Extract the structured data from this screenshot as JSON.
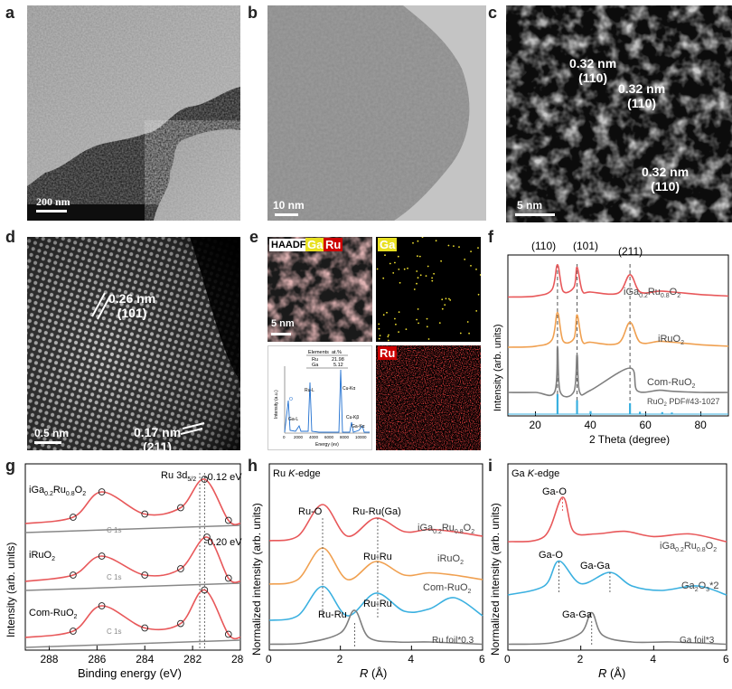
{
  "panels": {
    "a": {
      "label": "a",
      "scale": "200 nm"
    },
    "b": {
      "label": "b",
      "scale": "10 nm"
    },
    "c": {
      "label": "c",
      "scale": "5 nm",
      "fringes": [
        {
          "d": "0.32 nm",
          "hkl": "(110)"
        },
        {
          "d": "0.32 nm",
          "hkl": "(110)"
        },
        {
          "d": "0.32 nm",
          "hkl": "(110)"
        }
      ]
    },
    "d": {
      "label": "d",
      "scale": "0.5 nm",
      "fringes": [
        {
          "d": "0.26 nm",
          "hkl": "(101)"
        },
        {
          "d": "0.17 nm",
          "hkl": "(211)"
        }
      ]
    },
    "e": {
      "label": "e",
      "haadf": "HAADF",
      "ga": "Ga",
      "ru": "Ru",
      "scale": "5 nm",
      "eds": {
        "table_header": [
          "Elements",
          "at.%"
        ],
        "rows": [
          [
            "Ru",
            "21.98"
          ],
          [
            "Ga",
            "5.12"
          ]
        ],
        "ylabel": "Intensity (a.u.)",
        "xlabel": "Energy (ev)",
        "xticks": [
          "0",
          "2000",
          "4000",
          "6000",
          "8000",
          "10000"
        ],
        "peaks": [
          "O",
          "Ga-L",
          "Ru-L",
          "Cu-Kα",
          "Cu-Kβ",
          "Ga-Kα"
        ]
      }
    },
    "f": {
      "label": "f",
      "ylabel": "Intensity (arb. units)",
      "xlabel": "2 Theta (degree)",
      "xticks": [
        "20",
        "40",
        "60",
        "80"
      ],
      "peaks": [
        "(110)",
        "(101)",
        "(211)"
      ],
      "traces": [
        "iGa0.2Ru0.8O2",
        "iRuO2",
        "Com-RuO2",
        "RuO2 PDF#43-1027"
      ]
    },
    "g": {
      "label": "g",
      "ylabel": "Intensity (arb. units)",
      "xlabel": "Binding energy (eV)",
      "xticks": [
        "288",
        "286",
        "284",
        "282",
        "280"
      ],
      "edge": "Ru 3d5/2",
      "shift1": "-0.12 eV",
      "shift2": "-0.20 eV",
      "samples": [
        "iGa0.2Ru0.8O2",
        "iRuO2",
        "Com-RuO2"
      ],
      "c1s": "C 1s"
    },
    "h": {
      "label": "h",
      "ylabel": "Normalized intensity (arb. units)",
      "xlabel": "R (Å)",
      "xticks": [
        "0",
        "2",
        "4",
        "6"
      ],
      "edge": "Ru K-edge",
      "samples": [
        "iGa0.2Ru0.8O2",
        "iRuO2",
        "Com-RuO2",
        "Ru foil*0.3"
      ],
      "peaks": [
        "Ru-O",
        "Ru-Ru(Ga)",
        "Ru-Ru",
        "Ru-Ru",
        "Ru-Ru"
      ]
    },
    "i": {
      "label": "i",
      "ylabel": "Normalized intensity (arb. units)",
      "xlabel": "R (Å)",
      "xticks": [
        "0",
        "2",
        "4",
        "6"
      ],
      "edge": "Ga K-edge",
      "samples": [
        "iGa0.2Ru0.8O2",
        "Ga2O3*2",
        "Ga foil*3"
      ],
      "peaks": [
        "Ga-O",
        "Ga-O",
        "Ga-Ga",
        "Ga-Ga"
      ]
    }
  },
  "chart_data": [
    {
      "type": "line",
      "panel": "f",
      "xlabel": "2 Theta (degree)",
      "ylabel": "Intensity (arb. units)",
      "xlim": [
        10,
        90
      ],
      "reference_peaks_2theta": [
        28.0,
        35.1,
        54.3
      ],
      "series": [
        {
          "name": "iGa0.2Ru0.8O2",
          "color": "#e8585a",
          "x": [
            10,
            20,
            26,
            28,
            30,
            34,
            35.1,
            37,
            40,
            50,
            54.3,
            58,
            65,
            70,
            80,
            90
          ],
          "y": [
            0.3,
            0.32,
            0.45,
            0.95,
            0.42,
            0.5,
            0.9,
            0.42,
            0.4,
            0.38,
            0.75,
            0.4,
            0.42,
            0.4,
            0.35,
            0.32
          ]
        },
        {
          "name": "iRuO2",
          "color": "#f0a050",
          "x": [
            10,
            20,
            26,
            28,
            30,
            34,
            35.1,
            37,
            40,
            50,
            54.3,
            58,
            65,
            70,
            80,
            90
          ],
          "y": [
            0.2,
            0.22,
            0.35,
            0.9,
            0.33,
            0.38,
            0.85,
            0.32,
            0.3,
            0.28,
            0.7,
            0.3,
            0.32,
            0.3,
            0.25,
            0.22
          ]
        },
        {
          "name": "Com-RuO2",
          "color": "#7f7f7f",
          "x": [
            10,
            20,
            27,
            28,
            29,
            34,
            35.1,
            36,
            40,
            54.3,
            57,
            65,
            70,
            80,
            90
          ],
          "y": [
            0.1,
            0.1,
            0.11,
            0.95,
            0.11,
            0.12,
            0.8,
            0.11,
            0.14,
            0.55,
            0.13,
            0.14,
            0.12,
            0.1,
            0.1
          ]
        },
        {
          "name": "RuO2 PDF#43-1027",
          "color": "#3ab0e0",
          "x": [
            28.0,
            35.1,
            40.0,
            54.3,
            57.9,
            66.0,
            69.5
          ],
          "y": [
            1.0,
            0.7,
            0.15,
            0.55,
            0.12,
            0.1,
            0.08
          ]
        }
      ]
    },
    {
      "type": "line",
      "panel": "g",
      "xlabel": "Binding energy (eV)",
      "ylabel": "Intensity (arb. units)",
      "xlim": [
        289,
        280
      ],
      "series": [
        {
          "name": "iGa0.2Ru0.8O2",
          "x": [
            289,
            287,
            285.8,
            284,
            282.5,
            281.5,
            280.5,
            280
          ],
          "y": [
            0.2,
            0.3,
            0.7,
            0.35,
            0.45,
            0.9,
            0.25,
            0.2
          ]
        },
        {
          "name": "iRuO2",
          "x": [
            289,
            287,
            285.8,
            284,
            282.5,
            281.4,
            280.5,
            280
          ],
          "y": [
            0.2,
            0.3,
            0.6,
            0.3,
            0.4,
            0.9,
            0.25,
            0.2
          ]
        },
        {
          "name": "Com-RuO2",
          "x": [
            289,
            287,
            285.8,
            284,
            282.5,
            281.5,
            280.5,
            280
          ],
          "y": [
            0.2,
            0.3,
            0.7,
            0.35,
            0.42,
            0.95,
            0.25,
            0.2
          ]
        }
      ]
    },
    {
      "type": "line",
      "panel": "h",
      "xlabel": "R (Å)",
      "ylabel": "Normalized intensity (arb. units)",
      "xlim": [
        0,
        6
      ],
      "series": [
        {
          "name": "iGa0.2Ru0.8O2",
          "x": [
            0,
            0.8,
            1.5,
            2.2,
            3.0,
            3.8,
            4.5,
            5.2,
            6
          ],
          "y": [
            0.1,
            0.2,
            0.9,
            0.2,
            0.6,
            0.3,
            0.35,
            0.3,
            0.2
          ]
        },
        {
          "name": "iRuO2",
          "x": [
            0,
            0.8,
            1.5,
            2.2,
            3.0,
            3.8,
            4.5,
            5.2,
            6
          ],
          "y": [
            0.1,
            0.2,
            0.9,
            0.2,
            0.6,
            0.3,
            0.35,
            0.3,
            0.2
          ]
        },
        {
          "name": "Com-RuO2",
          "x": [
            0,
            0.8,
            1.5,
            2.2,
            3.0,
            3.8,
            4.5,
            5.2,
            6
          ],
          "y": [
            0.1,
            0.2,
            0.85,
            0.2,
            0.7,
            0.3,
            0.35,
            0.6,
            0.2
          ]
        },
        {
          "name": "Ru foil*0.3",
          "x": [
            0,
            1.0,
            2.0,
            2.4,
            2.8,
            3.6,
            4.5,
            6
          ],
          "y": [
            0.05,
            0.08,
            0.3,
            0.8,
            0.2,
            0.1,
            0.1,
            0.05
          ]
        }
      ]
    },
    {
      "type": "line",
      "panel": "i",
      "xlabel": "R (Å)",
      "ylabel": "Normalized intensity (arb. units)",
      "xlim": [
        0,
        6
      ],
      "series": [
        {
          "name": "iGa0.2Ru0.8O2",
          "x": [
            0,
            1.0,
            1.5,
            1.8,
            2.4,
            3.2,
            4.0,
            5.0,
            6
          ],
          "y": [
            0.1,
            0.2,
            0.95,
            0.3,
            0.25,
            0.3,
            0.2,
            0.25,
            0.1
          ]
        },
        {
          "name": "Ga2O3*2",
          "x": [
            0,
            1.0,
            1.4,
            2.0,
            2.8,
            3.4,
            4.2,
            5.2,
            6
          ],
          "y": [
            0.1,
            0.3,
            0.85,
            0.35,
            0.6,
            0.3,
            0.2,
            0.3,
            0.1
          ]
        },
        {
          "name": "Ga foil*3",
          "x": [
            0,
            1.2,
            2.0,
            2.3,
            2.6,
            3.4,
            4.5,
            6
          ],
          "y": [
            0.05,
            0.08,
            0.3,
            0.75,
            0.25,
            0.1,
            0.1,
            0.05
          ]
        }
      ]
    }
  ]
}
